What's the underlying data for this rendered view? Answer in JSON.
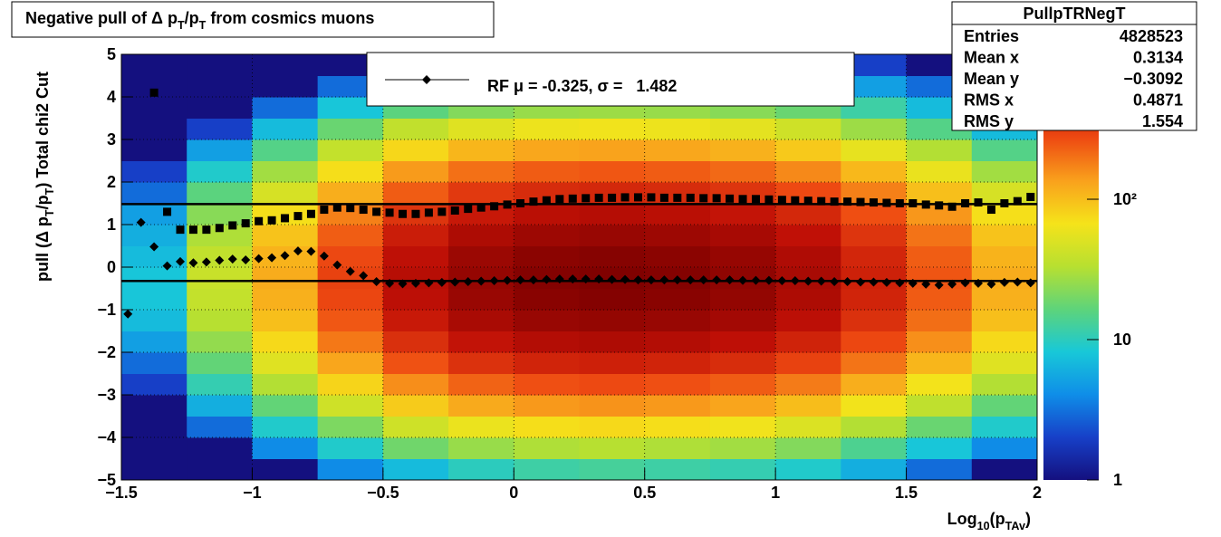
{
  "chart_data": {
    "type": "heatmap-profile",
    "title": [
      "Negative pull of Δ p",
      "T",
      "/p",
      "T",
      " from cosmics muons"
    ],
    "x_label": [
      "Log",
      "10",
      "(p",
      "TAv",
      ")"
    ],
    "y_label": [
      "pull (Δ p",
      "T",
      "/p",
      "T",
      ")  Total chi2 Cut"
    ],
    "xlim": [
      -1.5,
      2
    ],
    "ylim": [
      -5,
      5
    ],
    "zlim": [
      1,
      1110
    ],
    "zlog": true,
    "grid": true,
    "xticks": [
      {
        "value": -1.5,
        "label": "−1.5"
      },
      {
        "value": -1,
        "label": "−1"
      },
      {
        "value": -0.5,
        "label": "−0.5"
      },
      0,
      0.5,
      1,
      1.5,
      2
    ],
    "yticks": [
      {
        "value": -5,
        "label": "−5"
      },
      {
        "value": -4,
        "label": "−4"
      },
      {
        "value": -3,
        "label": "−3"
      },
      {
        "value": -2,
        "label": "−2"
      },
      {
        "value": -1,
        "label": "−1"
      },
      0,
      1,
      2,
      3,
      4,
      5
    ],
    "zticks": [
      1,
      10,
      {
        "value": 100,
        "label": "10²"
      }
    ],
    "colormap": [
      "#14107f",
      "#1740c8",
      "#0f8ee8",
      "#18c8d8",
      "#5ed47a",
      "#b8e030",
      "#f5e31a",
      "#f9a11c",
      "#ee4a12",
      "#c01006",
      "#7a0000"
    ],
    "xbins": [
      -1.5,
      -1.25,
      -1,
      -0.75,
      -0.5,
      -0.25,
      0,
      0.25,
      0.5,
      0.75,
      1,
      1.25,
      1.5,
      1.75,
      2
    ],
    "ybins": [
      -5,
      -4.5,
      -4,
      -3.5,
      -3,
      -2.5,
      -2,
      -1.5,
      -1,
      -0.5,
      0,
      0.5,
      1,
      1.5,
      2,
      2.5,
      3,
      3.5,
      4,
      4.5,
      5
    ],
    "z": [
      [
        1,
        1,
        1,
        4,
        7,
        10,
        12,
        13,
        12,
        11,
        9,
        6,
        3,
        1
      ],
      [
        1,
        1,
        4,
        9,
        19,
        26,
        31,
        33,
        31,
        28,
        22,
        14,
        8,
        4
      ],
      [
        1,
        3,
        9,
        21,
        43,
        60,
        71,
        75,
        71,
        64,
        50,
        32,
        18,
        9
      ],
      [
        1,
        6,
        17,
        43,
        87,
        123,
        145,
        152,
        145,
        130,
        101,
        65,
        36,
        17
      ],
      [
        2,
        11,
        32,
        79,
        158,
        224,
        263,
        276,
        263,
        237,
        184,
        118,
        66,
        32
      ],
      [
        3,
        17,
        52,
        129,
        258,
        366,
        430,
        452,
        430,
        387,
        301,
        194,
        108,
        52
      ],
      [
        5,
        25,
        75,
        188,
        376,
        533,
        627,
        658,
        627,
        564,
        439,
        282,
        157,
        75
      ],
      [
        7,
        33,
        98,
        245,
        491,
        695,
        818,
        859,
        818,
        736,
        573,
        368,
        205,
        98
      ],
      [
        8,
        38,
        115,
        287,
        574,
        813,
        956,
        1004,
        956,
        860,
        669,
        430,
        239,
        115
      ],
      [
        8,
        40,
        120,
        300,
        600,
        850,
        1000,
        1050,
        1000,
        900,
        700,
        450,
        250,
        120
      ],
      [
        7,
        37,
        112,
        281,
        561,
        795,
        935,
        982,
        935,
        842,
        655,
        421,
        234,
        112
      ],
      [
        6,
        31,
        94,
        235,
        470,
        666,
        783,
        822,
        783,
        705,
        548,
        352,
        196,
        94
      ],
      [
        5,
        23,
        70,
        176,
        352,
        498,
        586,
        615,
        586,
        527,
        410,
        264,
        147,
        70
      ],
      [
        3,
        16,
        47,
        118,
        236,
        334,
        393,
        413,
        393,
        354,
        275,
        177,
        98,
        47
      ],
      [
        2,
        9,
        28,
        71,
        142,
        201,
        236,
        248,
        236,
        212,
        165,
        106,
        59,
        28
      ],
      [
        1,
        5,
        15,
        38,
        76,
        108,
        127,
        133,
        127,
        114,
        89,
        57,
        32,
        15
      ],
      [
        1,
        2,
        7,
        18,
        37,
        52,
        61,
        64,
        61,
        55,
        43,
        27,
        15,
        7
      ],
      [
        1,
        1,
        3,
        8,
        16,
        22,
        26,
        27,
        26,
        23,
        18,
        12,
        7,
        3
      ],
      [
        1,
        1,
        1,
        3,
        6,
        9,
        10,
        11,
        10,
        9,
        7,
        5,
        3,
        1
      ],
      [
        1,
        1,
        1,
        1,
        2,
        3,
        4,
        4,
        4,
        3,
        2,
        2,
        1,
        1
      ]
    ],
    "x": [
      -1.475,
      -1.425,
      -1.375,
      -1.325,
      -1.275,
      -1.225,
      -1.175,
      -1.125,
      -1.075,
      -1.025,
      -0.975,
      -0.925,
      -0.875,
      -0.825,
      -0.775,
      -0.725,
      -0.675,
      -0.625,
      -0.575,
      -0.525,
      -0.475,
      -0.425,
      -0.375,
      -0.325,
      -0.275,
      -0.225,
      -0.175,
      -0.125,
      -0.075,
      -0.025,
      0.025,
      0.075,
      0.125,
      0.175,
      0.225,
      0.275,
      0.325,
      0.375,
      0.425,
      0.475,
      0.525,
      0.575,
      0.625,
      0.675,
      0.725,
      0.775,
      0.825,
      0.875,
      0.925,
      0.975,
      1.025,
      1.075,
      1.125,
      1.175,
      1.225,
      1.275,
      1.325,
      1.375,
      1.425,
      1.475,
      1.525,
      1.575,
      1.625,
      1.675,
      1.725,
      1.775,
      1.825,
      1.875,
      1.925,
      1.975
    ],
    "series": [
      {
        "marker": "diamond",
        "color": "#000000",
        "values": [
          -1.1,
          1.05,
          0.48,
          0.03,
          0.13,
          0.1,
          0.12,
          0.16,
          0.19,
          0.17,
          0.2,
          0.22,
          0.27,
          0.38,
          0.37,
          0.26,
          0.05,
          -0.1,
          -0.2,
          -0.34,
          -0.38,
          -0.39,
          -0.38,
          -0.37,
          -0.36,
          -0.35,
          -0.34,
          -0.33,
          -0.32,
          -0.31,
          -0.3,
          -0.3,
          -0.29,
          -0.28,
          -0.28,
          -0.28,
          -0.28,
          -0.29,
          -0.29,
          -0.3,
          -0.3,
          -0.3,
          -0.3,
          -0.3,
          -0.3,
          -0.3,
          -0.3,
          -0.31,
          -0.31,
          -0.31,
          -0.32,
          -0.32,
          -0.33,
          -0.33,
          -0.34,
          -0.34,
          -0.35,
          -0.35,
          -0.36,
          -0.37,
          -0.38,
          -0.4,
          -0.42,
          -0.4,
          -0.37,
          -0.38,
          -0.4,
          -0.36,
          -0.35,
          -0.37
        ]
      },
      {
        "marker": "square",
        "color": "#000000",
        "values": [
          null,
          null,
          4.1,
          1.3,
          0.88,
          0.88,
          0.88,
          0.92,
          0.98,
          1.03,
          1.08,
          1.1,
          1.15,
          1.2,
          1.25,
          1.35,
          1.4,
          1.39,
          1.35,
          1.3,
          1.28,
          1.25,
          1.25,
          1.28,
          1.3,
          1.33,
          1.37,
          1.4,
          1.43,
          1.47,
          1.5,
          1.54,
          1.57,
          1.6,
          1.61,
          1.62,
          1.63,
          1.63,
          1.64,
          1.64,
          1.64,
          1.63,
          1.63,
          1.63,
          1.62,
          1.62,
          1.61,
          1.6,
          1.6,
          1.59,
          1.58,
          1.57,
          1.56,
          1.55,
          1.54,
          1.54,
          1.53,
          1.52,
          1.51,
          1.5,
          1.5,
          1.47,
          1.45,
          1.42,
          1.5,
          1.52,
          1.35,
          1.5,
          1.55,
          1.65
        ]
      }
    ],
    "fit_mean": -0.325,
    "fit_sigma": 1.482,
    "legend_text": "RF μ = -0.325, σ =   1.482",
    "stats": {
      "title": "PullpTRNegT",
      "rows": [
        [
          "Entries",
          "4828523"
        ],
        [
          "Mean x",
          "0.3134"
        ],
        [
          "Mean y",
          "−0.3092"
        ],
        [
          "RMS x",
          "0.4871"
        ],
        [
          "RMS y",
          "1.554"
        ]
      ]
    }
  }
}
